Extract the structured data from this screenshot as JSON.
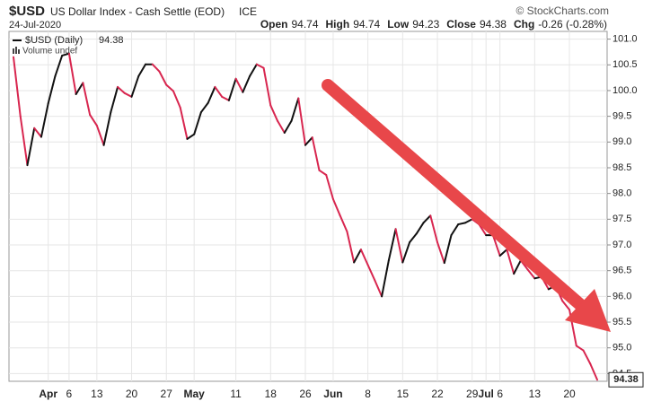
{
  "chart_data": {
    "type": "line",
    "title": "$USD",
    "subtitle": "US Dollar Index - Cash Settle (EOD)",
    "exchange": "ICE",
    "credit": "© StockCharts.com",
    "date": "24-Jul-2020",
    "stats": [
      {
        "name": "Open",
        "value": 94.74
      },
      {
        "name": "High",
        "value": 94.74
      },
      {
        "name": "Low",
        "value": 94.23
      },
      {
        "name": "Close",
        "value": 94.38
      },
      {
        "name": "Chg",
        "value": -0.26,
        "value_label": "-0.26 (-0.28%)"
      }
    ],
    "volume_label": "Volume undef",
    "up_color": "#111111",
    "down_color": "#d8264f",
    "grid": true,
    "categories": [
      null,
      null,
      null,
      null,
      null,
      "Apr",
      null,
      null,
      "6",
      null,
      null,
      null,
      "13",
      null,
      null,
      null,
      null,
      "20",
      null,
      null,
      null,
      null,
      "27",
      null,
      null,
      null,
      "May",
      null,
      null,
      null,
      null,
      null,
      "11",
      null,
      null,
      null,
      null,
      "18",
      null,
      null,
      null,
      null,
      "26",
      null,
      null,
      null,
      "Jun",
      null,
      null,
      null,
      null,
      "8",
      null,
      null,
      null,
      null,
      "15",
      null,
      null,
      null,
      null,
      "22",
      null,
      null,
      null,
      null,
      "29",
      null,
      "Jul",
      null,
      "6",
      null,
      null,
      null,
      null,
      "13",
      null,
      null,
      null,
      null,
      "20",
      null,
      null,
      null,
      null
    ],
    "series": [
      {
        "name": "$USD (Daily)",
        "values": [
          100.65,
          99.5,
          98.55,
          99.27,
          99.1,
          99.75,
          100.28,
          100.68,
          100.72,
          99.93,
          100.15,
          99.53,
          99.32,
          98.94,
          99.58,
          100.07,
          99.95,
          99.88,
          100.28,
          100.51,
          100.51,
          100.37,
          100.11,
          99.99,
          99.67,
          99.06,
          99.15,
          99.58,
          99.76,
          100.07,
          99.88,
          99.81,
          100.23,
          99.97,
          100.28,
          100.51,
          100.44,
          99.71,
          99.41,
          99.18,
          99.41,
          99.85,
          98.94,
          99.09,
          98.45,
          98.36,
          97.89,
          97.57,
          97.26,
          96.66,
          96.91,
          96.61,
          96.31,
          96.0,
          96.7,
          97.31,
          96.66,
          97.05,
          97.22,
          97.43,
          97.57,
          97.05,
          96.65,
          97.19,
          97.4,
          97.43,
          97.5,
          97.4,
          97.19,
          97.19,
          96.79,
          96.91,
          96.44,
          96.7,
          96.52,
          96.35,
          96.38,
          96.14,
          96.21,
          95.91,
          95.74,
          95.04,
          94.95,
          94.69,
          94.38
        ]
      }
    ],
    "ylim": [
      94.35,
      101.15
    ],
    "yticks": [
      {
        "value": 101,
        "label": "101.0"
      },
      100.5,
      {
        "value": 100,
        "label": "100.0"
      },
      99.5,
      {
        "value": 99,
        "label": "99.0"
      },
      98.5,
      {
        "value": 98,
        "label": "98.0"
      },
      97.5,
      {
        "value": 97,
        "label": "97.0"
      },
      96.5,
      {
        "value": 96,
        "label": "96.0"
      },
      95.5,
      {
        "value": 95,
        "label": "95.0"
      },
      94.5
    ]
  }
}
